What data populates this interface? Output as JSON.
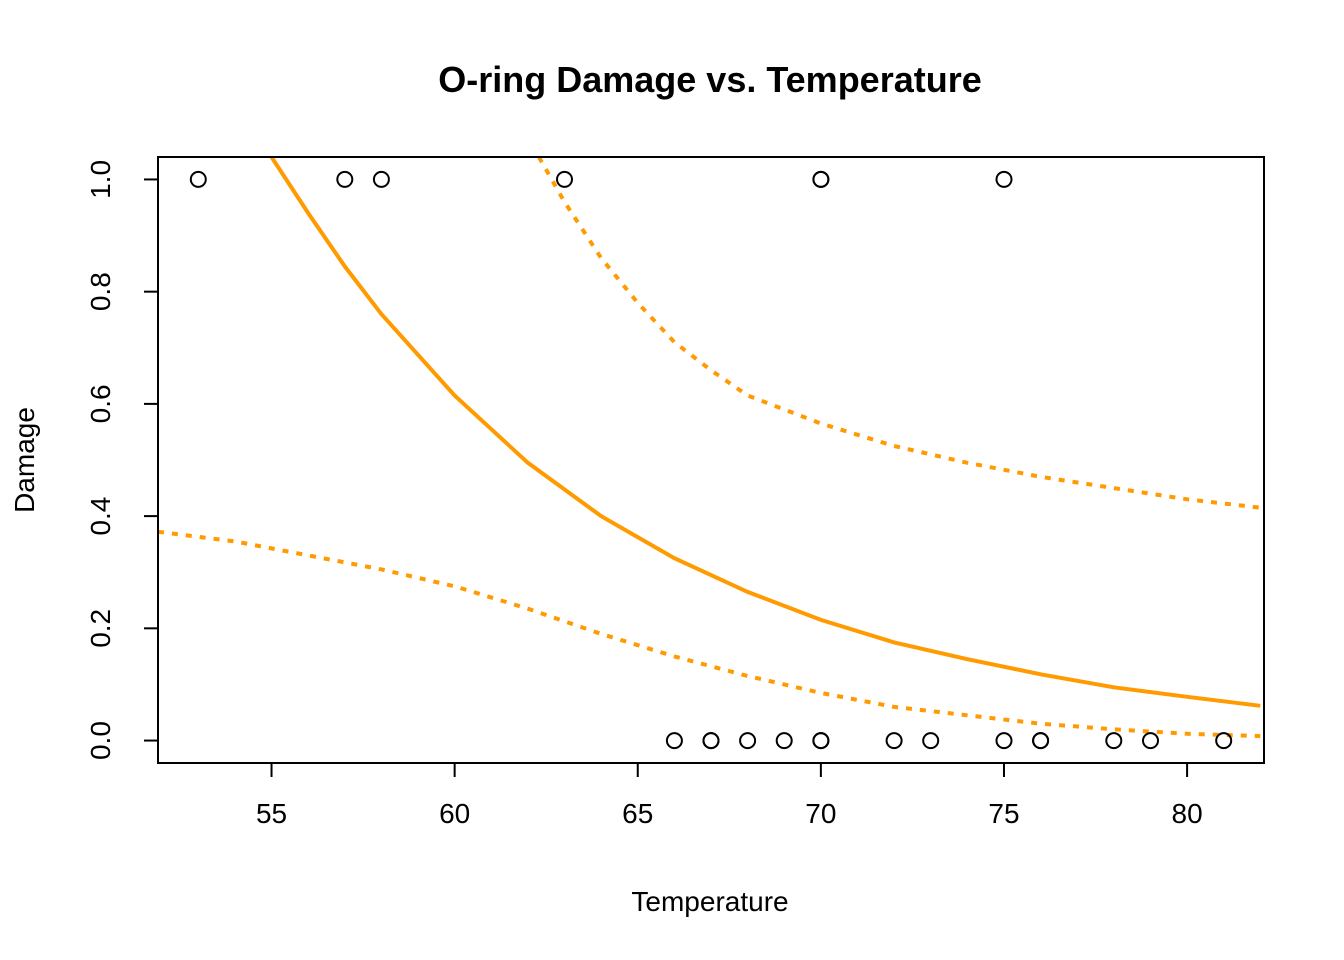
{
  "chart_data": {
    "type": "scatter",
    "title": "O-ring Damage vs. Temperature",
    "xlabel": "Temperature",
    "ylabel": "Damage",
    "xlim": [
      51.9,
      82.1
    ],
    "ylim": [
      -0.04,
      1.04
    ],
    "xticks": [
      55,
      60,
      65,
      70,
      75,
      80
    ],
    "yticks": [
      0.0,
      0.2,
      0.4,
      0.6,
      0.8,
      1.0
    ],
    "ytick_labels": [
      "0.0",
      "0.2",
      "0.4",
      "0.6",
      "0.8",
      "1.0"
    ],
    "grid": false,
    "legend": "none",
    "colors": {
      "curve": "#ff9a00",
      "points": "#000000"
    },
    "points": {
      "x": [
        53,
        57,
        58,
        63,
        70,
        70,
        75,
        66,
        67,
        67,
        68,
        69,
        70,
        70,
        72,
        73,
        75,
        76,
        76,
        78,
        79,
        81
      ],
      "y": [
        1,
        1,
        1,
        1,
        1,
        1,
        1,
        0,
        0,
        0,
        0,
        0,
        0,
        0,
        0,
        0,
        0,
        0,
        0,
        0,
        0,
        0
      ]
    },
    "series": [
      {
        "style": "solid",
        "x": [
          55,
          56,
          57,
          58,
          60,
          62,
          64,
          66,
          68,
          70,
          72,
          74,
          76,
          78,
          80,
          82
        ],
        "y": [
          1.04,
          0.94,
          0.845,
          0.76,
          0.615,
          0.495,
          0.4,
          0.325,
          0.265,
          0.215,
          0.175,
          0.145,
          0.118,
          0.095,
          0.078,
          0.062
        ]
      },
      {
        "style": "dotted",
        "x": [
          62.3,
          63,
          64,
          65,
          66,
          67,
          68,
          70,
          72,
          74,
          76,
          78,
          80,
          82
        ],
        "y": [
          1.04,
          0.96,
          0.86,
          0.78,
          0.71,
          0.66,
          0.615,
          0.565,
          0.525,
          0.495,
          0.47,
          0.45,
          0.43,
          0.415
        ]
      },
      {
        "style": "dotted",
        "x": [
          51.9,
          54,
          56,
          58,
          60,
          62,
          64,
          66,
          68,
          70,
          72,
          74,
          76,
          78,
          80,
          82
        ],
        "y": [
          0.372,
          0.355,
          0.33,
          0.305,
          0.275,
          0.235,
          0.19,
          0.15,
          0.115,
          0.085,
          0.06,
          0.045,
          0.03,
          0.02,
          0.012,
          0.008
        ]
      }
    ]
  }
}
